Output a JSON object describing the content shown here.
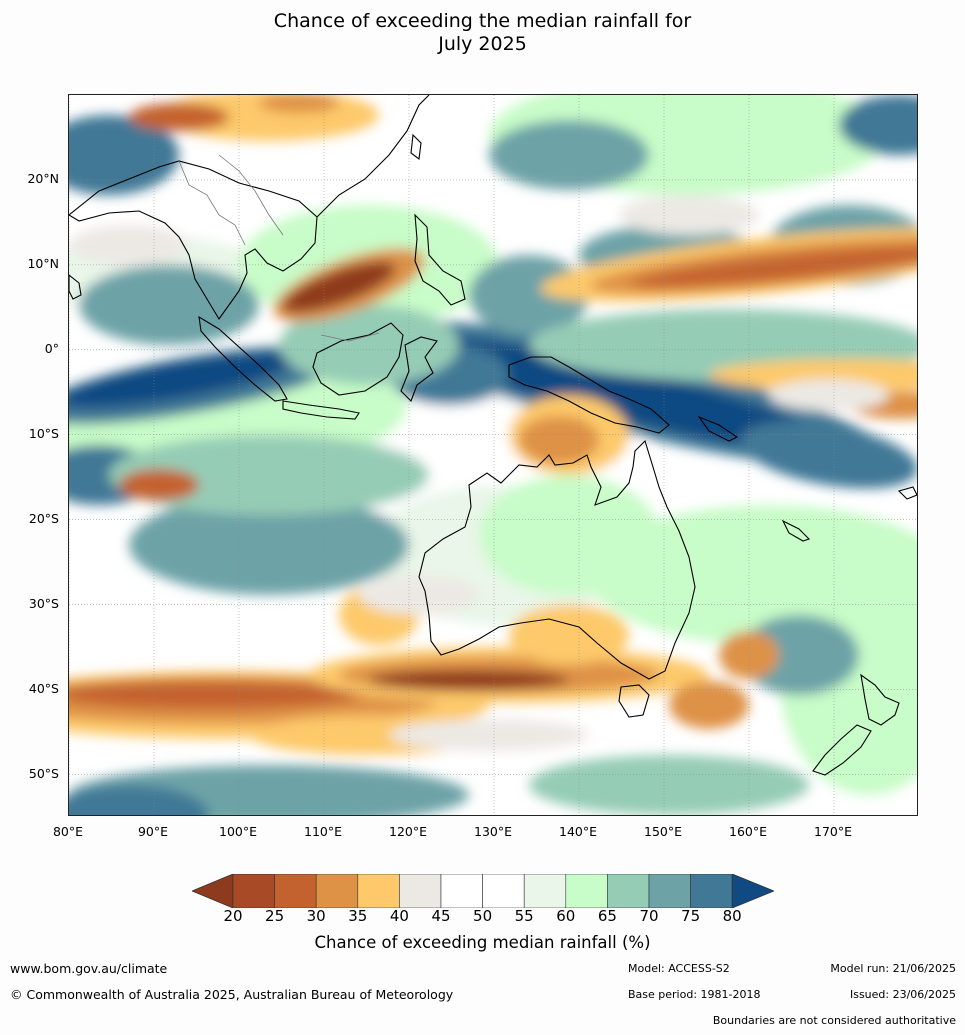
{
  "header": {
    "title_line1": "Chance of exceeding the median rainfall for",
    "title_line2": "July 2025"
  },
  "map": {
    "extent": {
      "lon_min": 80,
      "lon_max": 180,
      "lat_min": -55,
      "lat_max": 30
    },
    "lat_labels": [
      {
        "text": "20°N",
        "lat": 20
      },
      {
        "text": "10°N",
        "lat": 10
      },
      {
        "text": "0°",
        "lat": 0
      },
      {
        "text": "10°S",
        "lat": -10
      },
      {
        "text": "20°S",
        "lat": -20
      },
      {
        "text": "30°S",
        "lat": -30
      },
      {
        "text": "40°S",
        "lat": -40
      },
      {
        "text": "50°S",
        "lat": -50
      }
    ],
    "lon_labels": [
      {
        "text": "80°E",
        "lon": 80
      },
      {
        "text": "90°E",
        "lon": 90
      },
      {
        "text": "100°E",
        "lon": 100
      },
      {
        "text": "110°E",
        "lon": 110
      },
      {
        "text": "120°E",
        "lon": 120
      },
      {
        "text": "130°E",
        "lon": 130
      },
      {
        "text": "140°E",
        "lon": 140
      },
      {
        "text": "150°E",
        "lon": 150
      },
      {
        "text": "160°E",
        "lon": 160
      },
      {
        "text": "170°E",
        "lon": 170
      }
    ]
  },
  "colorbar": {
    "label": "Chance of exceeding median rainfall (%)",
    "ticks": [
      "20",
      "25",
      "30",
      "35",
      "40",
      "45",
      "50",
      "55",
      "60",
      "65",
      "70",
      "75",
      "80"
    ],
    "colors": {
      "below_20": "#8e3a1f",
      "c20_25": "#a94a27",
      "c25_30": "#c4622f",
      "c30_35": "#de9246",
      "c35_40": "#fdc96a",
      "c40_45": "#ece9e4",
      "c45_50": "#ffffff",
      "c50_55": "#ffffff",
      "c55_60": "#e9f6e9",
      "c60_65": "#c8fcc8",
      "c65_70": "#95ccb5",
      "c70_75": "#6da3a7",
      "c75_80": "#417896",
      "above_80": "#104a82"
    }
  },
  "footer": {
    "website": "www.bom.gov.au/climate",
    "copyright": "© Commonwealth of Australia 2025, Australian Bureau of Meteorology",
    "model": "Model: ACCESS-S2",
    "base_period": "Base period: 1981-2018",
    "model_run": "Model run: 21/06/2025",
    "issued": "Issued: 23/06/2025",
    "disclaimer": "Boundaries are not considered authoritative"
  }
}
